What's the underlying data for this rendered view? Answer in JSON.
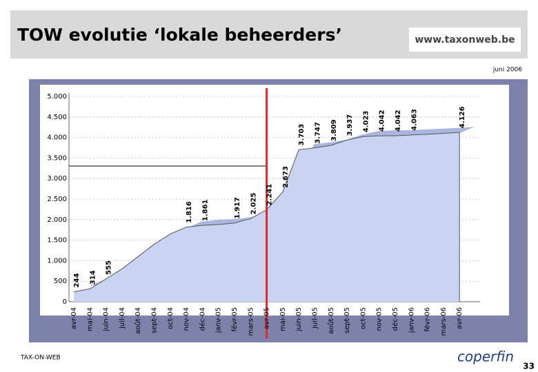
{
  "header": {
    "title": "TOW  evolutie ‘lokale beheerders’",
    "logo": "www.taxonweb.be",
    "date": "juni 2006"
  },
  "footer": {
    "left": "TAX-ON-WEB",
    "logo": "coperfin",
    "page": "33"
  },
  "chart_data": {
    "type": "area",
    "categories": [
      "avr-04",
      "mai-04",
      "juin-04",
      "juil-04",
      "août-04",
      "sept-04",
      "oct-04",
      "nov-04",
      "déc-04",
      "janv-05",
      "févr-05",
      "mars-05",
      "avr-05",
      "mai-05",
      "juin-05",
      "juil-05",
      "août-05",
      "sept-05",
      "oct-05",
      "nov-05",
      "déc-05",
      "janv-06",
      "févr-06",
      "mars-06",
      "avr-06"
    ],
    "values": [
      244,
      314,
      555,
      800,
      1100,
      1400,
      1650,
      1816,
      1861,
      1880,
      1917,
      2025,
      2241,
      2673,
      3703,
      3747,
      3809,
      3937,
      4023,
      4042,
      4042,
      4063,
      4080,
      4100,
      4126
    ],
    "value_labels": [
      "244",
      "314",
      "555",
      null,
      null,
      null,
      null,
      "1.816",
      "1.861",
      null,
      "1.917",
      "2.025",
      "2.241",
      "2.673",
      "3.703",
      "3.747",
      "3.809",
      "3.937",
      "4.023",
      "4.042",
      "4.042",
      "4.063",
      null,
      null,
      "4.126"
    ],
    "color": "#c9d3f2",
    "ylim": [
      0,
      5000
    ],
    "yticks": [
      0,
      500,
      {
        "value": 1000,
        "label": "1.000"
      },
      {
        "value": 1500,
        "label": "1.500"
      },
      {
        "value": 2000,
        "label": "2.000"
      },
      {
        "value": 2500,
        "label": "2.500"
      },
      {
        "value": 3000,
        "label": "3.000"
      },
      {
        "value": 3500,
        "label": "3.500"
      },
      {
        "value": 4000,
        "label": "4.000"
      },
      {
        "value": 4500,
        "label": "4.500"
      },
      {
        "value": 5000,
        "label": "5.000"
      }
    ],
    "grid": true
  }
}
